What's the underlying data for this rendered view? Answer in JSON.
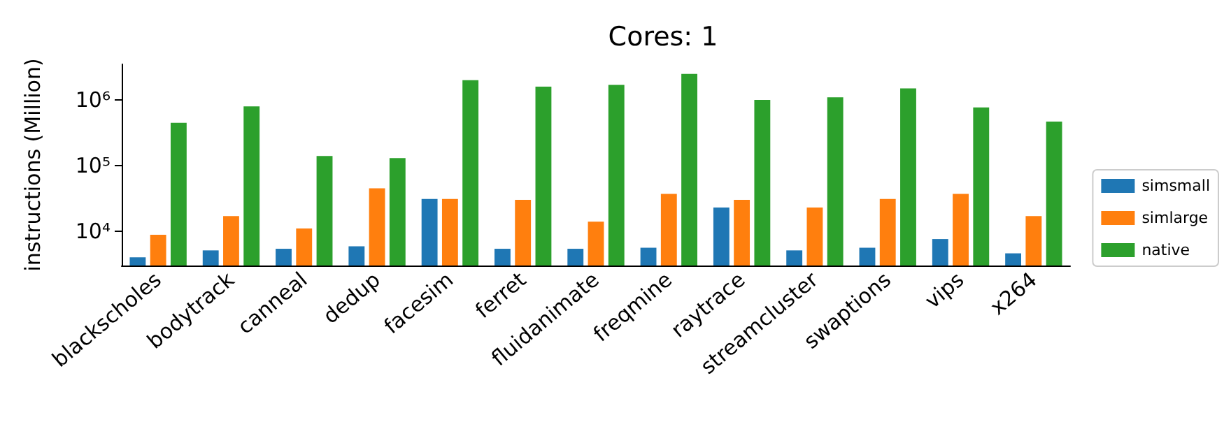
{
  "chart_data": {
    "type": "bar",
    "title": "Cores: 1",
    "ylabel": "instructions (Million)",
    "categories": [
      "blackscholes",
      "bodytrack",
      "canneal",
      "dedup",
      "facesim",
      "ferret",
      "fluidanimate",
      "freqmine",
      "raytrace",
      "streamcluster",
      "swaptions",
      "vips",
      "x264"
    ],
    "series": [
      {
        "name": "simsmall",
        "color": "#1f77b4",
        "values": [
          4000,
          5100,
          5400,
          5900,
          31000,
          5400,
          5400,
          5600,
          23000,
          5100,
          5600,
          7600,
          4600
        ]
      },
      {
        "name": "simlarge",
        "color": "#ff7f0e",
        "values": [
          8800,
          17000,
          11000,
          45000,
          31000,
          30000,
          14000,
          37000,
          30000,
          23000,
          31000,
          37000,
          17000
        ]
      },
      {
        "name": "native",
        "color": "#2ca02c",
        "values": [
          450000,
          800000,
          140000,
          130000,
          2000000,
          1600000,
          1700000,
          2500000,
          1000000,
          1100000,
          1500000,
          770000,
          470000
        ]
      }
    ],
    "log": true,
    "ylim": [
      3000,
      3500000
    ],
    "yticks": [
      {
        "value": 10000,
        "label": "10⁴"
      },
      {
        "value": 100000,
        "label": "10⁵"
      },
      {
        "value": 1000000,
        "label": "10⁶"
      }
    ],
    "grid": false,
    "legend": "right"
  }
}
